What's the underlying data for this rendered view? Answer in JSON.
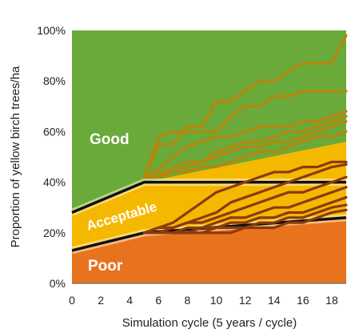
{
  "chart_data": {
    "type": "line",
    "xlabel": "Simulation cycle (5 years / cycle)",
    "ylabel": "Proportion of yellow birch trees/ha",
    "xlim": [
      0,
      19
    ],
    "ylim": [
      0,
      100
    ],
    "x_ticks": [
      0,
      2,
      4,
      6,
      8,
      10,
      12,
      14,
      16,
      18
    ],
    "y_ticks": [
      0,
      20,
      40,
      60,
      80,
      100
    ],
    "y_tick_labels": [
      "0%",
      "20%",
      "40%",
      "60%",
      "80%",
      "100%"
    ],
    "grid": false,
    "legend": "none",
    "zones": [
      {
        "label": "Good",
        "color": "#6aaa3a"
      },
      {
        "label": "Acceptable",
        "color": "#f5b800"
      },
      {
        "label": "Poor",
        "color": "#e8731e"
      }
    ],
    "thresholds": {
      "upper": {
        "x": [
          0,
          5,
          19
        ],
        "y": [
          28,
          40,
          40
        ]
      },
      "upper_widening": {
        "x": [
          5,
          19
        ],
        "y": [
          40,
          56
        ]
      },
      "lower": {
        "x": [
          0,
          5,
          19
        ],
        "y": [
          13,
          20,
          26
        ]
      }
    },
    "series_groups": [
      {
        "color": "#b8860b",
        "lines": [
          {
            "x": [
              5,
              6,
              7,
              8,
              9,
              10,
              11,
              12,
              13,
              14,
              15,
              16,
              17,
              18,
              19
            ],
            "y": [
              42,
              55,
              55,
              62,
              62,
              72,
              72,
              76,
              80,
              80,
              84,
              87,
              87,
              87,
              98
            ]
          },
          {
            "x": [
              5,
              6,
              7,
              8,
              9,
              10,
              11,
              12,
              13,
              14,
              15,
              16,
              17,
              18,
              19
            ],
            "y": [
              42,
              58,
              60,
              60,
              60,
              60,
              66,
              70,
              70,
              74,
              74,
              76,
              76,
              76,
              76
            ]
          },
          {
            "x": [
              5,
              6,
              7,
              8,
              9,
              10,
              11,
              12,
              13,
              14,
              15,
              16,
              17,
              18,
              19
            ],
            "y": [
              42,
              45,
              50,
              54,
              56,
              58,
              58,
              60,
              62,
              62,
              62,
              64,
              64,
              66,
              68
            ]
          },
          {
            "x": [
              5,
              6,
              7,
              8,
              9,
              10,
              11,
              12,
              13,
              14,
              15,
              16,
              17,
              18,
              19
            ],
            "y": [
              42,
              42,
              46,
              48,
              48,
              52,
              54,
              56,
              56,
              58,
              60,
              60,
              62,
              64,
              66
            ]
          },
          {
            "x": [
              5,
              6,
              7,
              8,
              9,
              10,
              11,
              12,
              13,
              14,
              15,
              16,
              17,
              18,
              19
            ],
            "y": [
              42,
              44,
              44,
              46,
              48,
              50,
              52,
              54,
              54,
              56,
              56,
              58,
              60,
              62,
              64
            ]
          },
          {
            "x": [
              5,
              6,
              7,
              8,
              9,
              10,
              11,
              12,
              13,
              14,
              15,
              16,
              17,
              18,
              19
            ],
            "y": [
              42,
              42,
              44,
              44,
              46,
              46,
              48,
              50,
              52,
              52,
              54,
              56,
              58,
              58,
              60
            ]
          }
        ]
      },
      {
        "color": "#8b3a0e",
        "lines": [
          {
            "x": [
              5,
              6,
              7,
              8,
              9,
              10,
              11,
              12,
              13,
              14,
              15,
              16,
              17,
              18,
              19
            ],
            "y": [
              20,
              22,
              24,
              28,
              32,
              36,
              38,
              40,
              42,
              44,
              44,
              46,
              46,
              48,
              48
            ]
          },
          {
            "x": [
              5,
              6,
              7,
              8,
              9,
              10,
              11,
              12,
              13,
              14,
              15,
              16,
              17,
              18,
              19
            ],
            "y": [
              20,
              22,
              22,
              24,
              26,
              28,
              32,
              34,
              36,
              38,
              40,
              42,
              44,
              46,
              47
            ]
          },
          {
            "x": [
              5,
              6,
              7,
              8,
              9,
              10,
              11,
              12,
              13,
              14,
              15,
              16,
              17,
              18,
              19
            ],
            "y": [
              20,
              20,
              22,
              24,
              24,
              26,
              28,
              30,
              32,
              34,
              36,
              36,
              38,
              40,
              42
            ]
          },
          {
            "x": [
              5,
              6,
              7,
              8,
              9,
              10,
              11,
              12,
              13,
              14,
              15,
              16,
              17,
              18,
              19
            ],
            "y": [
              20,
              20,
              20,
              22,
              22,
              24,
              26,
              26,
              28,
              30,
              30,
              32,
              34,
              36,
              38
            ]
          },
          {
            "x": [
              5,
              6,
              7,
              8,
              9,
              10,
              11,
              12,
              13,
              14,
              15,
              16,
              17,
              18,
              19
            ],
            "y": [
              20,
              20,
              20,
              20,
              22,
              22,
              24,
              24,
              26,
              26,
              28,
              28,
              30,
              32,
              34
            ]
          },
          {
            "x": [
              5,
              6,
              7,
              8,
              9,
              10,
              11,
              12,
              13,
              14,
              15,
              16,
              17,
              18,
              19
            ],
            "y": [
              20,
              20,
              20,
              20,
              20,
              22,
              22,
              22,
              24,
              24,
              26,
              26,
              28,
              30,
              31
            ]
          },
          {
            "x": [
              5,
              6,
              7,
              8,
              9,
              10,
              11,
              12,
              13,
              14,
              15,
              16,
              17,
              18,
              19
            ],
            "y": [
              20,
              20,
              20,
              20,
              20,
              20,
              20,
              22,
              22,
              22,
              24,
              24,
              26,
              28,
              29
            ]
          }
        ]
      }
    ]
  }
}
